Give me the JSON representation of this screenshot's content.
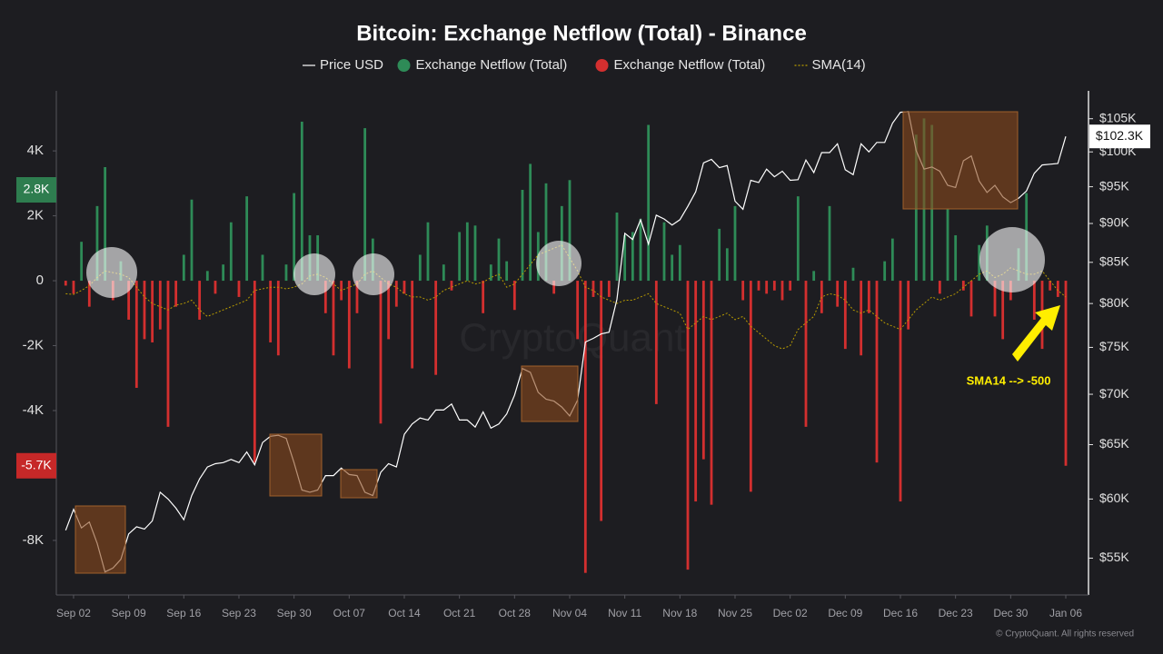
{
  "chart_data": {
    "type": "combo",
    "title": "Bitcoin: Exchange Netflow (Total) - Binance",
    "watermark": "CryptoQuant",
    "copyright": "© CryptoQuant. All rights reserved",
    "annotation": "SMA14 --> -500",
    "categories": [
      null,
      "Sep 02",
      null,
      null,
      null,
      null,
      null,
      null,
      "Sep 09",
      null,
      null,
      null,
      null,
      null,
      null,
      "Sep 16",
      null,
      null,
      null,
      null,
      null,
      null,
      "Sep 23",
      null,
      null,
      null,
      null,
      null,
      null,
      "Sep 30",
      null,
      null,
      null,
      null,
      null,
      null,
      "Oct 07",
      null,
      null,
      null,
      null,
      null,
      null,
      "Oct 14",
      null,
      null,
      null,
      null,
      null,
      null,
      "Oct 21",
      null,
      null,
      null,
      null,
      null,
      null,
      "Oct 28",
      null,
      null,
      null,
      null,
      null,
      null,
      "Nov 04",
      null,
      null,
      null,
      null,
      null,
      null,
      "Nov 11",
      null,
      null,
      null,
      null,
      null,
      null,
      "Nov 18",
      null,
      null,
      null,
      null,
      null,
      null,
      "Nov 25",
      null,
      null,
      null,
      null,
      null,
      null,
      "Dec 02",
      null,
      null,
      null,
      null,
      null,
      null,
      "Dec 09",
      null,
      null,
      null,
      null,
      null,
      null,
      "Dec 16",
      null,
      null,
      null,
      null,
      null,
      null,
      "Dec 23",
      null,
      null,
      null,
      null,
      null,
      null,
      "Dec 30",
      null,
      null,
      null,
      null,
      null,
      null,
      "Jan 06"
    ],
    "ylim": [
      -9680,
      5850
    ],
    "yticks": [
      {
        "value": 4000,
        "label": "4K"
      },
      {
        "value": 2000,
        "label": "2K"
      },
      0,
      {
        "value": -2000,
        "label": "-2K"
      },
      {
        "value": -4000,
        "label": "-4K"
      },
      {
        "value": -8000,
        "label": "-8K"
      }
    ],
    "y_highlights": [
      {
        "value": 2800,
        "label": "2.8K",
        "color": "#2e7d4f"
      },
      {
        "value": -5700,
        "label": "-5.7K",
        "color": "#c62828"
      }
    ],
    "y2lim": [
      52100,
      109400
    ],
    "y2log": true,
    "y2ticks": [
      {
        "value": 55000,
        "label": "$55K"
      },
      {
        "value": 60000,
        "label": "$60K"
      },
      {
        "value": 65000,
        "label": "$65K"
      },
      {
        "value": 70000,
        "label": "$70K"
      },
      {
        "value": 75000,
        "label": "$75K"
      },
      {
        "value": 80000,
        "label": "$80K"
      },
      {
        "value": 85000,
        "label": "$85K"
      },
      {
        "value": 90000,
        "label": "$90K"
      },
      {
        "value": 95000,
        "label": "$95K"
      },
      {
        "value": 100000,
        "label": "$100K"
      },
      {
        "value": 105000,
        "label": "$105K"
      }
    ],
    "y2_highlight": {
      "value": 102300,
      "label": "$102.3K"
    },
    "series": [
      {
        "name": "Price USD",
        "color": "#ffffff",
        "kind": "line",
        "axis": "y2",
        "values": [
          57300,
          59100,
          57500,
          58000,
          56200,
          53900,
          54200,
          54900,
          57000,
          57600,
          57400,
          58100,
          60600,
          60000,
          59200,
          58200,
          60300,
          61800,
          62900,
          63200,
          63300,
          63600,
          63300,
          64300,
          63100,
          65200,
          65800,
          65900,
          65600,
          63300,
          60800,
          60600,
          60800,
          62100,
          62100,
          62800,
          62200,
          62100,
          60600,
          60300,
          62400,
          63200,
          62900,
          66000,
          67000,
          67600,
          67400,
          68400,
          68400,
          69000,
          67400,
          67400,
          66700,
          68200,
          66600,
          67000,
          68000,
          69900,
          72700,
          72300,
          70200,
          69500,
          69300,
          68700,
          67800,
          69400,
          75600,
          76000,
          76500,
          76700,
          80500,
          88700,
          87900,
          90500,
          87300,
          91100,
          90600,
          89800,
          90500,
          92300,
          94300,
          98400,
          98900,
          97700,
          98000,
          93000,
          91900,
          95900,
          95600,
          97500,
          96400,
          97200,
          95900,
          96000,
          98800,
          97000,
          99900,
          99900,
          101200,
          97400,
          96700,
          101200,
          100000,
          101400,
          101400,
          104300,
          106000,
          106100,
          100200,
          97500,
          97800,
          97200,
          95200,
          94900,
          98700,
          99400,
          95800,
          94200,
          95200,
          93600,
          92800,
          93400,
          94400,
          96900,
          98100,
          98200,
          98300,
          102300
        ]
      },
      {
        "name": "Exchange Netflow (Total)",
        "color": "#2e8b57",
        "kind": "bar",
        "values": [
          null,
          null,
          1200,
          null,
          2300,
          3500,
          null,
          600,
          null,
          null,
          null,
          null,
          null,
          null,
          null,
          800,
          2500,
          null,
          300,
          null,
          500,
          1800,
          null,
          2600,
          null,
          800,
          null,
          null,
          500,
          2700,
          4900,
          1400,
          1400,
          null,
          null,
          null,
          null,
          null,
          4700,
          1300,
          null,
          null,
          null,
          null,
          null,
          800,
          1800,
          null,
          500,
          null,
          1500,
          1800,
          1700,
          null,
          500,
          1300,
          600,
          null,
          2800,
          3600,
          1500,
          3000,
          null,
          2300,
          3100,
          null,
          null,
          null,
          null,
          null,
          2100,
          1400,
          1500,
          1900,
          4800,
          null,
          1800,
          800,
          1100,
          null,
          null,
          null,
          null,
          1600,
          1000,
          2300,
          null,
          null,
          null,
          null,
          null,
          null,
          null,
          2600,
          null,
          300,
          null,
          2300,
          null,
          null,
          400,
          null,
          null,
          null,
          600,
          1300,
          null,
          null,
          4500,
          5000,
          4800,
          null,
          2200,
          1400,
          null,
          null,
          1100,
          1700,
          null,
          null,
          null,
          1000,
          2700,
          null,
          null,
          null,
          null,
          null
        ]
      },
      {
        "name": "Exchange Netflow (Total)",
        "color": "#d32f2f",
        "kind": "bar",
        "values": [
          -150,
          -400,
          null,
          -800,
          null,
          null,
          -600,
          null,
          -1200,
          -3300,
          -1800,
          -1900,
          -1500,
          -4500,
          -800,
          null,
          null,
          -1200,
          null,
          -400,
          null,
          null,
          -500,
          null,
          -5600,
          null,
          -1900,
          -2300,
          null,
          null,
          null,
          null,
          null,
          -1000,
          -2300,
          -600,
          -2700,
          -1000,
          null,
          null,
          -4400,
          -1800,
          -800,
          -400,
          -2700,
          null,
          null,
          -2900,
          null,
          -300,
          null,
          null,
          null,
          -1000,
          null,
          null,
          null,
          -900,
          null,
          null,
          null,
          null,
          -400,
          null,
          null,
          -1800,
          -9000,
          -500,
          -7400,
          -500,
          null,
          null,
          null,
          null,
          null,
          -3800,
          null,
          null,
          null,
          -8900,
          -6800,
          -5500,
          -6900,
          null,
          null,
          null,
          -600,
          -6500,
          -300,
          -400,
          -300,
          -600,
          -300,
          null,
          -4500,
          null,
          -1000,
          null,
          -800,
          -2100,
          null,
          -2300,
          -1000,
          -5600,
          null,
          null,
          -6800,
          -1500,
          null,
          null,
          null,
          -400,
          null,
          null,
          -300,
          -1100,
          null,
          null,
          -1100,
          -1800,
          -600,
          null,
          null,
          -1200,
          -2100,
          -300,
          -500,
          -5700
        ]
      },
      {
        "name": "SMA(14)",
        "color": "#b89b00",
        "kind": "line",
        "dashed": true,
        "values": [
          -400,
          -420,
          -300,
          -150,
          100,
          300,
          250,
          200,
          100,
          -200,
          -500,
          -700,
          -800,
          -900,
          -750,
          -700,
          -600,
          -900,
          -1100,
          -1000,
          -900,
          -800,
          -700,
          -600,
          -300,
          -250,
          -200,
          -200,
          -250,
          -200,
          -100,
          150,
          200,
          100,
          -100,
          -300,
          -200,
          -100,
          200,
          300,
          100,
          -100,
          -200,
          -400,
          -500,
          -500,
          -600,
          -500,
          -300,
          -200,
          -100,
          0,
          -100,
          -50,
          100,
          200,
          -200,
          -100,
          200,
          500,
          800,
          900,
          1000,
          1100,
          700,
          300,
          -200,
          -300,
          -500,
          -600,
          -700,
          -600,
          -600,
          -500,
          -400,
          -700,
          -800,
          -900,
          -1000,
          -1500,
          -1300,
          -1100,
          -1200,
          -1100,
          -1000,
          -1200,
          -1100,
          -1400,
          -1600,
          -1800,
          -2000,
          -2100,
          -2000,
          -1500,
          -1300,
          -1100,
          -500,
          -400,
          -450,
          -600,
          -900,
          -1000,
          -900,
          -1100,
          -1300,
          -1400,
          -1500,
          -1200,
          -900,
          -700,
          -500,
          -600,
          -500,
          -400,
          -200,
          0,
          200,
          300,
          100,
          200,
          400,
          300,
          200,
          200,
          300,
          0,
          -300,
          -500
        ]
      }
    ]
  }
}
